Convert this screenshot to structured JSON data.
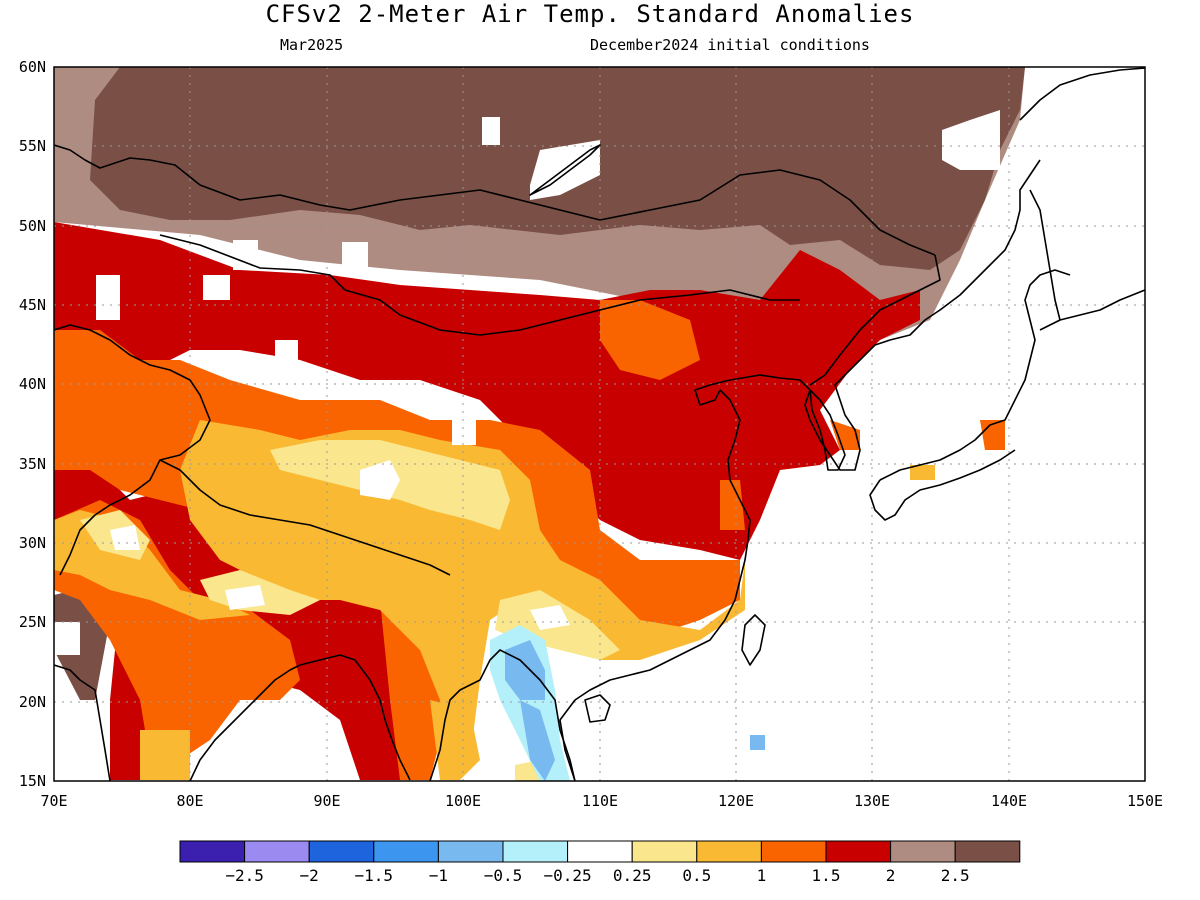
{
  "header": {
    "title": "CFSv2 2-Meter Air Temp. Standard Anomalies",
    "month": "Mar2025",
    "init": "December2024 initial conditions"
  },
  "axes": {
    "lat_labels": [
      "60N",
      "55N",
      "50N",
      "45N",
      "40N",
      "35N",
      "30N",
      "25N",
      "20N",
      "15N"
    ],
    "lon_labels": [
      "70E",
      "80E",
      "90E",
      "100E",
      "110E",
      "120E",
      "130E",
      "140E",
      "150E"
    ]
  },
  "colorbar": {
    "colors": [
      "#3b20b0",
      "#9b8af0",
      "#1e64dc",
      "#3c96f0",
      "#78b9f0",
      "#b4f0fa",
      "#ffffff",
      "#fae68c",
      "#fab932",
      "#fa6400",
      "#c80000",
      "#af8c82",
      "#7a5046"
    ],
    "labels": [
      "−2.5",
      "−2",
      "−1.5",
      "−1",
      "−0.5",
      "−0.25",
      "0.25",
      "0.5",
      "1",
      "1.5",
      "2",
      "2.5"
    ]
  },
  "palette": {
    "c_lt25": "#3b20b0",
    "c_n2": "#9b8af0",
    "c_n15": "#1e64dc",
    "c_n1": "#3c96f0",
    "c_n05": "#78b9f0",
    "c_n025": "#b4f0fa",
    "c_white": "#ffffff",
    "c_025": "#fae68c",
    "c_05": "#fab932",
    "c_1": "#fa6400",
    "c_15": "#c80000",
    "c_2": "#af8c82",
    "c_25": "#7a5046"
  }
}
